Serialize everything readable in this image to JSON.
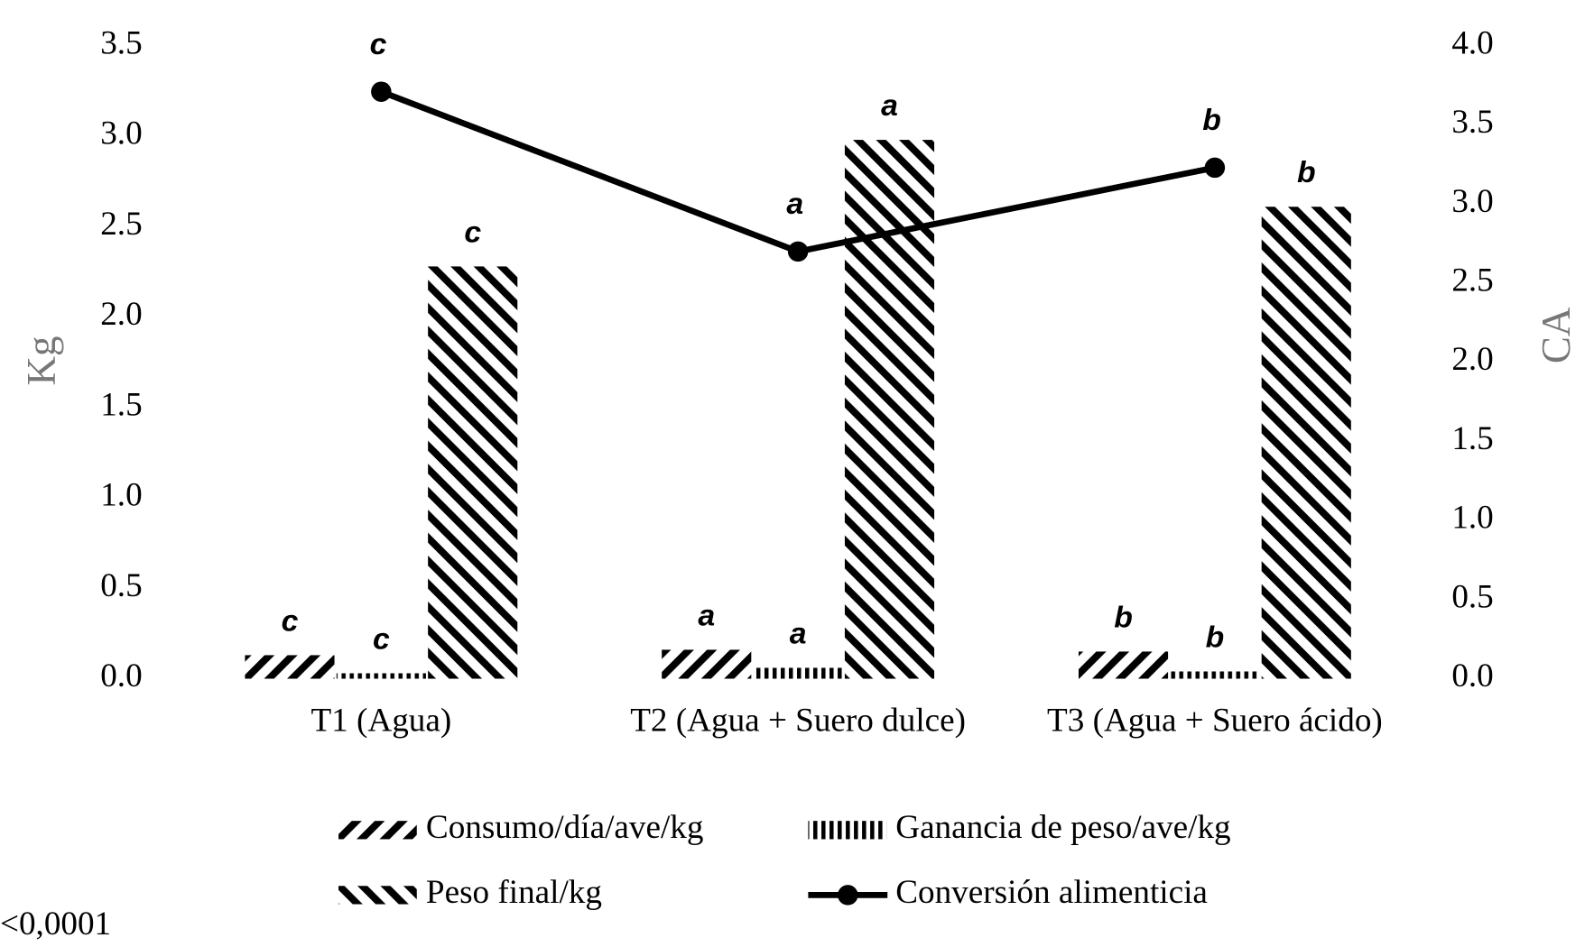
{
  "chart_data": {
    "type": "bar",
    "categories": [
      "T1 (Agua)",
      "T2 (Agua + Suero dulce)",
      "T3 (Agua + Suero ácido)"
    ],
    "ylabel": "Kg",
    "y2label": "CA",
    "ylim": [
      0,
      3.5
    ],
    "yticks": [
      {
        "value": 0,
        "label": "0.0"
      },
      0.5,
      {
        "value": 1,
        "label": "1.0"
      },
      1.5,
      {
        "value": 2,
        "label": "2.0"
      },
      2.5,
      {
        "value": 3,
        "label": "3.0"
      },
      3.5
    ],
    "y2lim": [
      0,
      4
    ],
    "y2ticks": [
      {
        "value": 0,
        "label": "0.0"
      },
      0.5,
      {
        "value": 1,
        "label": "1.0"
      },
      1.5,
      {
        "value": 2,
        "label": "2.0"
      },
      2.5,
      {
        "value": 3,
        "label": "3.0"
      },
      3.5,
      {
        "value": 4,
        "label": "4.0"
      }
    ],
    "series": [
      {
        "name": "Consumo/día/ave/kg",
        "type": "bar",
        "pattern": "down",
        "color": "#000",
        "values": [
          0.13,
          0.16,
          0.15
        ],
        "letters": [
          "c",
          "a",
          "b"
        ]
      },
      {
        "name": "Ganancia de peso/ave/kg",
        "type": "bar",
        "pattern": "vertical",
        "color": "#000",
        "values": [
          0.03,
          0.06,
          0.04
        ],
        "letters": [
          "c",
          "a",
          "b"
        ]
      },
      {
        "name": "Peso final/kg",
        "type": "bar",
        "pattern": "up",
        "color": "#000",
        "values": [
          2.28,
          2.98,
          2.61
        ],
        "letters": [
          "c",
          "a",
          "b"
        ]
      },
      {
        "name": "Conversión alimenticia",
        "type": "line",
        "axis": "y2",
        "color": "#000",
        "values": [
          3.71,
          2.7,
          3.23
        ],
        "letters": [
          "c",
          "a",
          "b"
        ]
      }
    ],
    "note": "<0,0001"
  }
}
